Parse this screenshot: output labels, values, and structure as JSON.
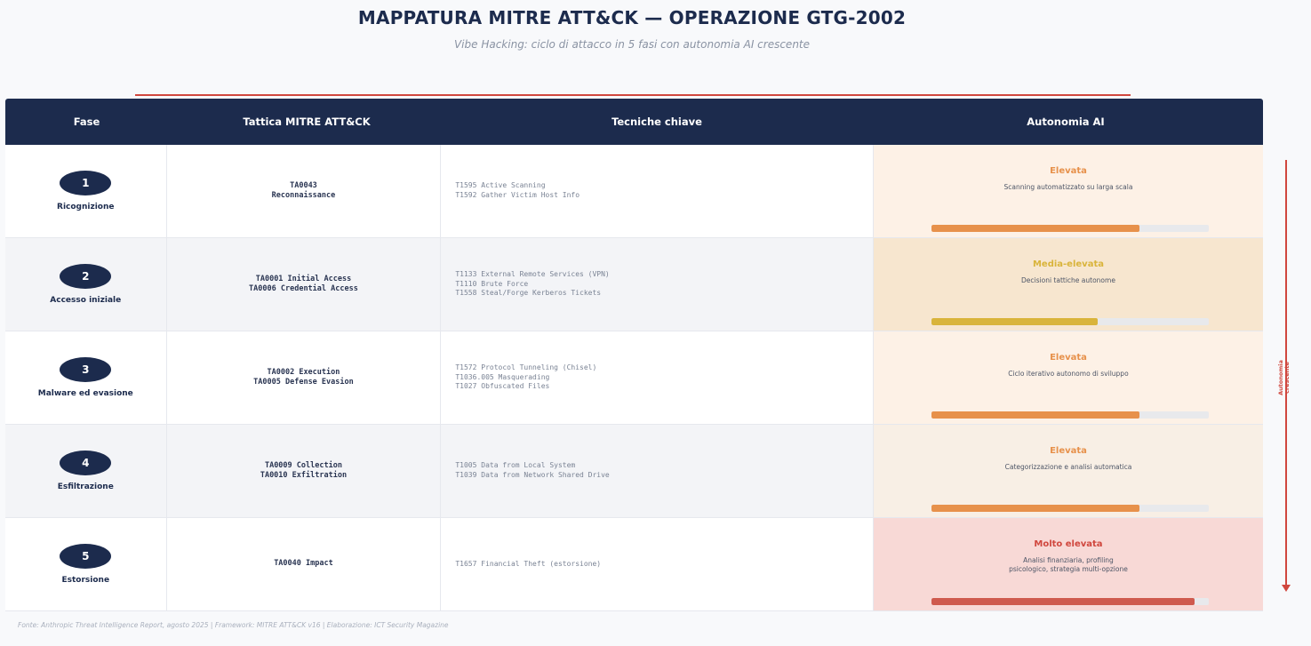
{
  "header": {
    "title": "MAPPATURA MITRE ATT&CK — OPERAZIONE GTG-2002",
    "subtitle": "Vibe Hacking: ciclo di attacco in 5 fasi con autonomia AI crescente"
  },
  "colors": {
    "navy": "#1c2b4d",
    "accent": "#d0473e",
    "orange": "#e7914b",
    "gold": "#d9b43b",
    "red": "#cf5a4e"
  },
  "table": {
    "headers": [
      "Fase",
      "Tattica MITRE ATT&CK",
      "Tecniche chiave",
      "Autonomia AI"
    ],
    "rows": [
      {
        "num": "1",
        "phase": "Ricognizione",
        "tactics": [
          "TA0043",
          "Reconnaissance"
        ],
        "techniques": [
          "T1595 Active Scanning",
          "T1592 Gather Victim Host Info"
        ],
        "level": "Elevata",
        "description": [
          "Scanning automatizzato su larga scala"
        ],
        "autonomy": 0.75,
        "cell_bg": "#fdf1e6",
        "level_color": "#e7914b",
        "bar_color": "#e7914b"
      },
      {
        "num": "2",
        "phase": "Accesso iniziale",
        "tactics": [
          "TA0001 Initial Access",
          "TA0006 Credential Access"
        ],
        "techniques": [
          "T1133 External Remote Services (VPN)",
          "T1110 Brute Force",
          "T1558 Steal/Forge Kerberos Tickets"
        ],
        "level": "Media-elevata",
        "description": [
          "Decisioni tattiche autonome"
        ],
        "autonomy": 0.6,
        "cell_bg": "#f7e6cf",
        "level_color": "#d9b43b",
        "bar_color": "#d9b43b"
      },
      {
        "num": "3",
        "phase": "Malware ed evasione",
        "tactics": [
          "TA0002 Execution",
          "TA0005 Defense Evasion"
        ],
        "techniques": [
          "T1572 Protocol Tunneling (Chisel)",
          "T1036.005 Masquerading",
          "T1027 Obfuscated Files"
        ],
        "level": "Elevata",
        "description": [
          "Ciclo iterativo autonomo di sviluppo"
        ],
        "autonomy": 0.75,
        "cell_bg": "#fdf1e6",
        "level_color": "#e7914b",
        "bar_color": "#e7914b"
      },
      {
        "num": "4",
        "phase": "Esfiltrazione",
        "tactics": [
          "TA0009 Collection",
          "TA0010 Exfiltration"
        ],
        "techniques": [
          "T1005 Data from Local System",
          "T1039 Data from Network Shared Drive"
        ],
        "level": "Elevata",
        "description": [
          "Categorizzazione e analisi automatica"
        ],
        "autonomy": 0.75,
        "cell_bg": "#f8efe5",
        "level_color": "#e7914b",
        "bar_color": "#e7914b"
      },
      {
        "num": "5",
        "phase": "Estorsione",
        "tactics": [
          "TA0040 Impact"
        ],
        "techniques": [
          "T1657 Financial Theft (estorsione)"
        ],
        "level": "Molto elevata",
        "description": [
          "Analisi finanziaria, profiling",
          "psicologico, strategia multi-opzione"
        ],
        "autonomy": 0.95,
        "cell_bg": "#f8d9d6",
        "level_color": "#d0473e",
        "bar_color": "#cf5a4e"
      }
    ]
  },
  "scale": {
    "label_line1": "Autonomia",
    "label_line2": "crescente"
  },
  "footer": "Fonte: Anthropic Threat Intelligence Report, agosto 2025 | Framework: MITRE ATT&CK v16 | Elaborazione: ICT Security Magazine"
}
